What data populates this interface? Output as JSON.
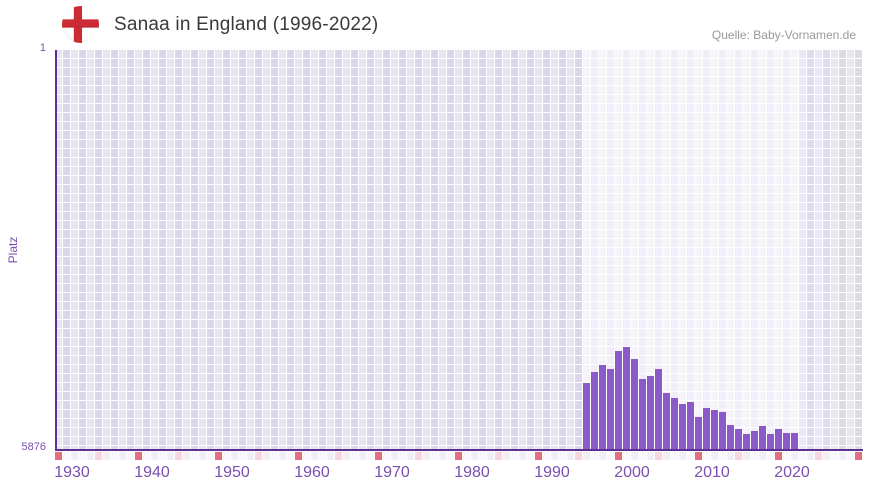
{
  "header": {
    "title": "Sanaa in England (1996-2022)",
    "flag_icon": "england-flag-icon",
    "source": "Quelle: Baby-Vornamen.de"
  },
  "y_axis": {
    "axis_label": "Platz",
    "top_tick": "1",
    "bottom_tick": "5876"
  },
  "x_axis": {
    "start_year": 1930,
    "end_year": 2030,
    "decade_labels": [
      "1930",
      "1940",
      "1950",
      "1960",
      "1970",
      "1980",
      "1990",
      "2000",
      "2010",
      "2020"
    ]
  },
  "chart_data": {
    "type": "bar",
    "title": "Sanaa in England (1996-2022)",
    "xlabel": "",
    "ylabel": "Platz",
    "ylim": [
      1,
      5876
    ],
    "y_axis_inverted": true,
    "x_range_shown": [
      1930,
      2030
    ],
    "highlighted_range": [
      1996,
      2022
    ],
    "grid": true,
    "x": [
      1996,
      1997,
      1998,
      1999,
      2000,
      2001,
      2002,
      2003,
      2004,
      2005,
      2006,
      2007,
      2008,
      2009,
      2010,
      2011,
      2012,
      2013,
      2014,
      2015,
      2016,
      2017,
      2018,
      2019,
      2020,
      2021,
      2022
    ],
    "values": [
      4897,
      4730,
      4628,
      4691,
      4422,
      4359,
      4544,
      4838,
      4789,
      4682,
      5044,
      5117,
      5201,
      5167,
      5391,
      5264,
      5284,
      5314,
      5509,
      5563,
      5645,
      5601,
      5519,
      5645,
      5568,
      5622,
      5622
    ],
    "value_note": "Platz (rank) estimated from pixel heights; lower number = better rank = taller bar"
  },
  "colors": {
    "bar": "#8c5ac8",
    "axis": "#5c2f92",
    "region_past": "#dcd6ea",
    "region_highlight": "#f1edf9",
    "region_after": "#e1dbef",
    "region_future": "#dddbe4",
    "tick_even": "#f2eef8",
    "tick_odd": "#f9f7fc",
    "decade_tick": "#e0717c",
    "half_decade_tick": "#f5d6de",
    "label_purple": "#7a4fae",
    "title_text": "#3a3a3a",
    "source_text": "#999999",
    "flag_red": "#cc2b35"
  },
  "layout_regions": [
    {
      "name": "past-no-data",
      "from_year": 1930,
      "to_year": 1995
    },
    {
      "name": "data-period-highlight",
      "from_year": 1996,
      "to_year": 2022
    },
    {
      "name": "after-data",
      "from_year": 2023,
      "to_year": 2026
    },
    {
      "name": "future-gray",
      "from_year": 2027,
      "to_year": 2030
    }
  ]
}
